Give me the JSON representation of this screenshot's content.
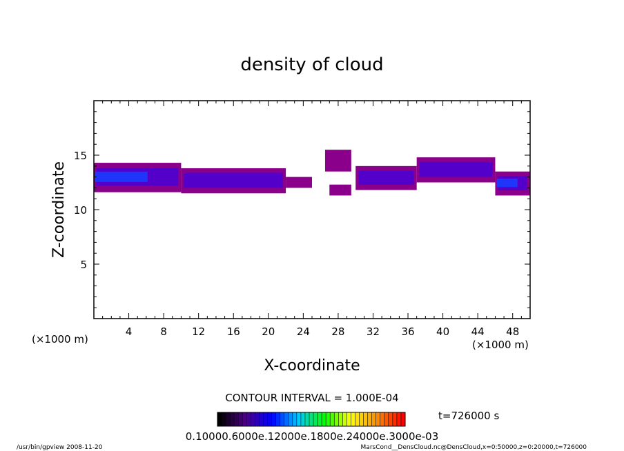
{
  "chart_data": {
    "type": "heatmap",
    "title": "density of cloud",
    "xlabel": "X-coordinate",
    "ylabel": "Z-coordinate",
    "x_unit": "(×1000 m)",
    "z_unit": "(×1000 m)",
    "xlim": [
      0,
      50
    ],
    "ylim": [
      0,
      20
    ],
    "x_ticks": [
      "4",
      "8",
      "12",
      "16",
      "20",
      "24",
      "28",
      "32",
      "36",
      "40",
      "44",
      "48"
    ],
    "y_ticks": [
      "5",
      "10",
      "15"
    ],
    "contour_interval": "CONTOUR INTERVAL = 1.000E-04",
    "time_label": "t=726000 s",
    "colorbar_labels": "0.10000.6000e.12000e.1800e.24000e.3000e-03",
    "colormap": [
      "#000000",
      "#4b0082",
      "#0000ff",
      "#00c8ff",
      "#00ff00",
      "#ffff00",
      "#ff8c00",
      "#ff0000"
    ],
    "cloud_colors": {
      "low": "#8b008b",
      "mid": "#4b00d0",
      "high": "#1a3cff"
    },
    "cloud_layers": [
      {
        "x_start": 0,
        "x_end": 10,
        "z_bottom": 11.6,
        "z_top": 14.3,
        "level": "high"
      },
      {
        "x_start": 10,
        "x_end": 22,
        "z_bottom": 11.5,
        "z_top": 13.8,
        "level": "mid"
      },
      {
        "x_start": 22,
        "x_end": 25,
        "z_bottom": 12.0,
        "z_top": 13.0,
        "level": "low"
      },
      {
        "x_start": 26.5,
        "x_end": 29.5,
        "z_bottom": 13.5,
        "z_top": 15.5,
        "level": "low"
      },
      {
        "x_start": 27,
        "x_end": 29.5,
        "z_bottom": 11.3,
        "z_top": 12.3,
        "level": "low"
      },
      {
        "x_start": 30,
        "x_end": 37,
        "z_bottom": 11.8,
        "z_top": 14.0,
        "level": "mid"
      },
      {
        "x_start": 37,
        "x_end": 46,
        "z_bottom": 12.5,
        "z_top": 14.8,
        "level": "mid"
      },
      {
        "x_start": 46,
        "x_end": 50,
        "z_bottom": 11.3,
        "z_top": 13.5,
        "level": "high"
      }
    ]
  },
  "footer": {
    "left": "/usr/bin/gpview   2008-11-20",
    "right": "MarsCond__DensCloud.nc@DensCloud,x=0:50000,z=0:20000,t=726000"
  }
}
